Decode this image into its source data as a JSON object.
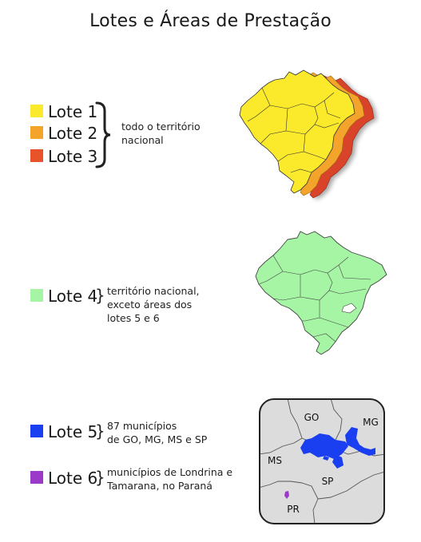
{
  "title": "Lotes e Áreas de Prestação",
  "colors": {
    "lote1": "#fbe92c",
    "lote2": "#f4a42a",
    "lote3": "#e8532a",
    "lote4": "#a5f5a5",
    "lote5": "#1a3ff0",
    "lote6": "#9b39c8",
    "region_bg": "#dcdcdc"
  },
  "legend": {
    "lote1": "Lote 1",
    "lote2": "Lote 2",
    "lote3": "Lote 3",
    "lote4": "Lote 4",
    "lote5": "Lote 5",
    "lote6": "Lote 6"
  },
  "descriptions": {
    "lotes123_line1": "todo o território",
    "lotes123_line2": "nacional",
    "lote4_line1": "território nacional,",
    "lote4_line2": "exceto áreas dos",
    "lote4_line3": "lotes 5 e 6",
    "lote5_line1": "87 municípios",
    "lote5_line2": "de GO, MG, MS e SP",
    "lote6_line1": "municípios de Londrina e",
    "lote6_line2": "Tamarana, no Paraná"
  },
  "map_labels": {
    "go": "GO",
    "mg": "MG",
    "ms": "MS",
    "sp": "SP",
    "pr": "PR"
  }
}
